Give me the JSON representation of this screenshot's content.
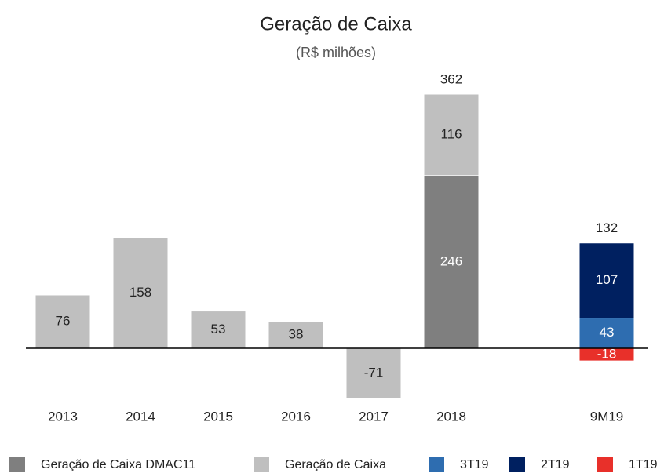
{
  "chart_data": {
    "type": "bar",
    "stacked": true,
    "title": "Geração de Caixa",
    "subtitle": "(R$ milhões)",
    "categories": [
      "2013",
      "2014",
      "2015",
      "2016",
      "2017",
      "2018",
      null,
      "9M19"
    ],
    "series": [
      {
        "name": "Geração de Caixa DMAC11",
        "color": "#7f7f7f",
        "values": [
          null,
          null,
          null,
          null,
          null,
          246,
          null,
          null
        ]
      },
      {
        "name": "Geração de Caixa",
        "color": "#bfbfbf",
        "values": [
          76,
          158,
          53,
          38,
          -71,
          116,
          null,
          null
        ]
      },
      {
        "name": "3T19",
        "color": "#2e6db0",
        "values": [
          null,
          null,
          null,
          null,
          null,
          null,
          null,
          43
        ]
      },
      {
        "name": "2T19",
        "color": "#002060",
        "values": [
          null,
          null,
          null,
          null,
          null,
          null,
          null,
          107
        ]
      },
      {
        "name": "1T19",
        "color": "#e8302a",
        "values": [
          null,
          null,
          null,
          null,
          null,
          null,
          null,
          -18
        ]
      }
    ],
    "totals": [
      null,
      null,
      null,
      null,
      null,
      362,
      null,
      132
    ],
    "legend": "bottom"
  }
}
